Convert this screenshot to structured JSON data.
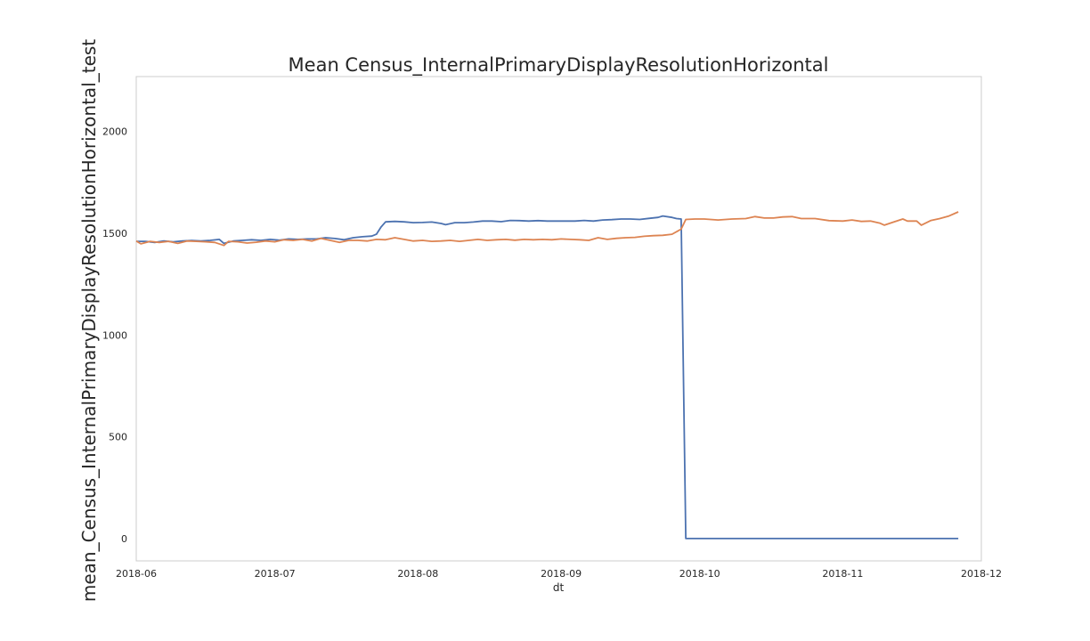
{
  "chart_data": {
    "type": "line",
    "title": "Mean Census_InternalPrimaryDisplayResolutionHorizontal",
    "xlabel": "dt",
    "ylabel": "mean_Census_InternalPrimaryDisplayResolutionHorizontal_test",
    "xlim": [
      "2018-06-01",
      "2018-12-01"
    ],
    "ylim": [
      -110,
      2270
    ],
    "grid": false,
    "legend": "none",
    "x_ticks": [
      "2018-06",
      "2018-07",
      "2018-08",
      "2018-09",
      "2018-10",
      "2018-11",
      "2018-12"
    ],
    "y_ticks": [
      0,
      500,
      1000,
      1500,
      2000
    ],
    "series": [
      {
        "color": "#4c72b0",
        "points": [
          [
            "2018-06-01",
            1460
          ],
          [
            "2018-06-03",
            1460
          ],
          [
            "2018-06-05",
            1455
          ],
          [
            "2018-06-07",
            1462
          ],
          [
            "2018-06-09",
            1458
          ],
          [
            "2018-06-11",
            1462
          ],
          [
            "2018-06-13",
            1464
          ],
          [
            "2018-06-15",
            1462
          ],
          [
            "2018-06-17",
            1465
          ],
          [
            "2018-06-19",
            1470
          ],
          [
            "2018-06-20",
            1450
          ],
          [
            "2018-06-22",
            1462
          ],
          [
            "2018-06-24",
            1465
          ],
          [
            "2018-06-26",
            1468
          ],
          [
            "2018-06-28",
            1465
          ],
          [
            "2018-06-30",
            1470
          ],
          [
            "2018-07-02",
            1466
          ],
          [
            "2018-07-04",
            1472
          ],
          [
            "2018-07-06",
            1470
          ],
          [
            "2018-07-08",
            1472
          ],
          [
            "2018-07-10",
            1472
          ],
          [
            "2018-07-12",
            1478
          ],
          [
            "2018-07-14",
            1474
          ],
          [
            "2018-07-16",
            1468
          ],
          [
            "2018-07-18",
            1478
          ],
          [
            "2018-07-20",
            1483
          ],
          [
            "2018-07-22",
            1486
          ],
          [
            "2018-07-23",
            1495
          ],
          [
            "2018-07-24",
            1530
          ],
          [
            "2018-07-25",
            1556
          ],
          [
            "2018-07-27",
            1558
          ],
          [
            "2018-07-29",
            1556
          ],
          [
            "2018-07-31",
            1552
          ],
          [
            "2018-08-02",
            1553
          ],
          [
            "2018-08-04",
            1555
          ],
          [
            "2018-08-06",
            1548
          ],
          [
            "2018-08-07",
            1542
          ],
          [
            "2018-08-09",
            1552
          ],
          [
            "2018-08-11",
            1552
          ],
          [
            "2018-08-13",
            1555
          ],
          [
            "2018-08-15",
            1560
          ],
          [
            "2018-08-17",
            1560
          ],
          [
            "2018-08-19",
            1557
          ],
          [
            "2018-08-21",
            1563
          ],
          [
            "2018-08-23",
            1562
          ],
          [
            "2018-08-25",
            1560
          ],
          [
            "2018-08-27",
            1562
          ],
          [
            "2018-08-29",
            1560
          ],
          [
            "2018-08-31",
            1560
          ],
          [
            "2018-09-02",
            1560
          ],
          [
            "2018-09-04",
            1560
          ],
          [
            "2018-09-06",
            1563
          ],
          [
            "2018-09-08",
            1560
          ],
          [
            "2018-09-10",
            1565
          ],
          [
            "2018-09-12",
            1567
          ],
          [
            "2018-09-14",
            1570
          ],
          [
            "2018-09-16",
            1570
          ],
          [
            "2018-09-18",
            1568
          ],
          [
            "2018-09-20",
            1573
          ],
          [
            "2018-09-22",
            1578
          ],
          [
            "2018-09-23",
            1585
          ],
          [
            "2018-09-25",
            1578
          ],
          [
            "2018-09-26",
            1572
          ],
          [
            "2018-09-27",
            1570
          ],
          [
            "2018-09-28",
            0
          ],
          [
            "2018-10-15",
            0
          ],
          [
            "2018-11-01",
            0
          ],
          [
            "2018-11-26",
            0
          ]
        ]
      },
      {
        "color": "#dd8452",
        "points": [
          [
            "2018-06-01",
            1462
          ],
          [
            "2018-06-02",
            1448
          ],
          [
            "2018-06-04",
            1460
          ],
          [
            "2018-06-06",
            1455
          ],
          [
            "2018-06-08",
            1460
          ],
          [
            "2018-06-10",
            1450
          ],
          [
            "2018-06-12",
            1462
          ],
          [
            "2018-06-14",
            1460
          ],
          [
            "2018-06-16",
            1458
          ],
          [
            "2018-06-18",
            1455
          ],
          [
            "2018-06-20",
            1440
          ],
          [
            "2018-06-21",
            1460
          ],
          [
            "2018-06-23",
            1458
          ],
          [
            "2018-06-25",
            1452
          ],
          [
            "2018-06-27",
            1456
          ],
          [
            "2018-06-29",
            1462
          ],
          [
            "2018-07-01",
            1458
          ],
          [
            "2018-07-03",
            1468
          ],
          [
            "2018-07-05",
            1465
          ],
          [
            "2018-07-07",
            1470
          ],
          [
            "2018-07-09",
            1462
          ],
          [
            "2018-07-11",
            1475
          ],
          [
            "2018-07-13",
            1465
          ],
          [
            "2018-07-15",
            1455
          ],
          [
            "2018-07-17",
            1465
          ],
          [
            "2018-07-19",
            1465
          ],
          [
            "2018-07-21",
            1462
          ],
          [
            "2018-07-23",
            1470
          ],
          [
            "2018-07-25",
            1468
          ],
          [
            "2018-07-27",
            1478
          ],
          [
            "2018-07-29",
            1470
          ],
          [
            "2018-07-31",
            1462
          ],
          [
            "2018-08-02",
            1465
          ],
          [
            "2018-08-04",
            1460
          ],
          [
            "2018-08-06",
            1462
          ],
          [
            "2018-08-08",
            1465
          ],
          [
            "2018-08-10",
            1460
          ],
          [
            "2018-08-12",
            1465
          ],
          [
            "2018-08-14",
            1470
          ],
          [
            "2018-08-16",
            1465
          ],
          [
            "2018-08-18",
            1468
          ],
          [
            "2018-08-20",
            1470
          ],
          [
            "2018-08-22",
            1466
          ],
          [
            "2018-08-24",
            1470
          ],
          [
            "2018-08-26",
            1468
          ],
          [
            "2018-08-28",
            1470
          ],
          [
            "2018-08-30",
            1468
          ],
          [
            "2018-09-01",
            1472
          ],
          [
            "2018-09-03",
            1470
          ],
          [
            "2018-09-05",
            1468
          ],
          [
            "2018-09-07",
            1465
          ],
          [
            "2018-09-09",
            1478
          ],
          [
            "2018-09-11",
            1470
          ],
          [
            "2018-09-13",
            1475
          ],
          [
            "2018-09-15",
            1478
          ],
          [
            "2018-09-17",
            1480
          ],
          [
            "2018-09-19",
            1485
          ],
          [
            "2018-09-21",
            1488
          ],
          [
            "2018-09-23",
            1490
          ],
          [
            "2018-09-25",
            1495
          ],
          [
            "2018-09-27",
            1520
          ],
          [
            "2018-09-28",
            1568
          ],
          [
            "2018-09-30",
            1570
          ],
          [
            "2018-10-02",
            1570
          ],
          [
            "2018-10-05",
            1565
          ],
          [
            "2018-10-08",
            1570
          ],
          [
            "2018-10-11",
            1572
          ],
          [
            "2018-10-13",
            1582
          ],
          [
            "2018-10-15",
            1575
          ],
          [
            "2018-10-17",
            1575
          ],
          [
            "2018-10-19",
            1580
          ],
          [
            "2018-10-21",
            1582
          ],
          [
            "2018-10-23",
            1572
          ],
          [
            "2018-10-26",
            1572
          ],
          [
            "2018-10-29",
            1562
          ],
          [
            "2018-11-01",
            1560
          ],
          [
            "2018-11-03",
            1565
          ],
          [
            "2018-11-05",
            1558
          ],
          [
            "2018-11-07",
            1560
          ],
          [
            "2018-11-09",
            1550
          ],
          [
            "2018-11-10",
            1540
          ],
          [
            "2018-11-12",
            1555
          ],
          [
            "2018-11-14",
            1570
          ],
          [
            "2018-11-15",
            1560
          ],
          [
            "2018-11-17",
            1560
          ],
          [
            "2018-11-18",
            1540
          ],
          [
            "2018-11-20",
            1562
          ],
          [
            "2018-11-22",
            1572
          ],
          [
            "2018-11-24",
            1585
          ],
          [
            "2018-11-26",
            1605
          ]
        ]
      }
    ]
  }
}
